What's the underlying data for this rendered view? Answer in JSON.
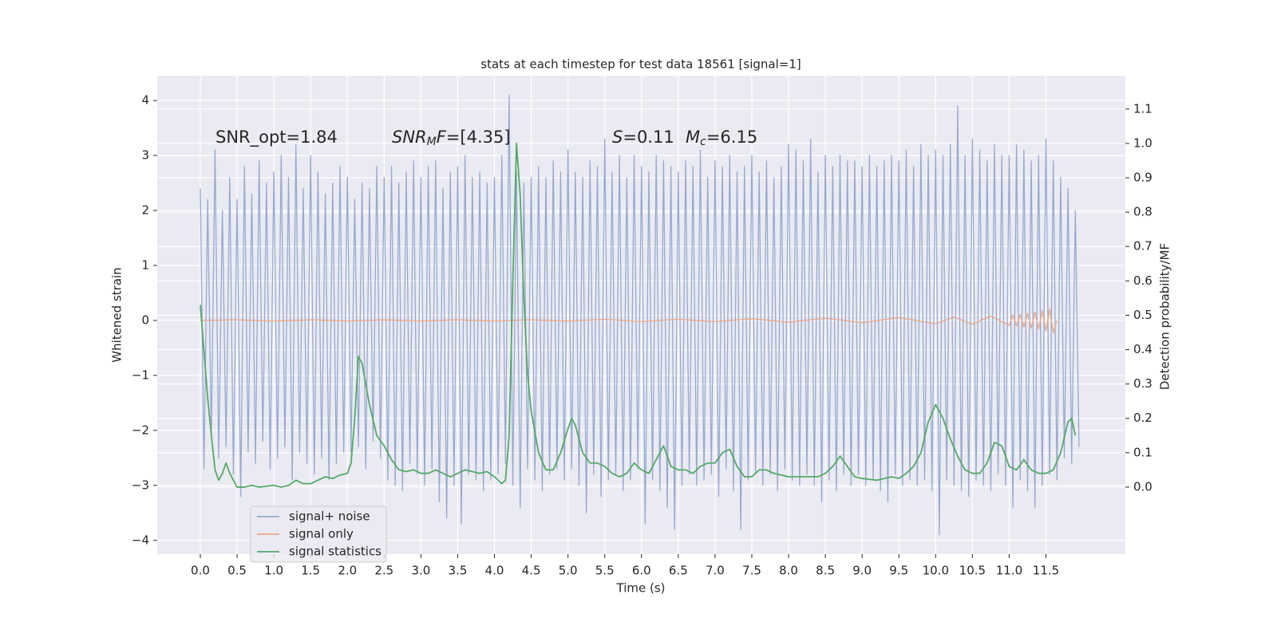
{
  "chart_data": {
    "type": "line",
    "title": "stats at each timestep for test data 18561 [signal=1]",
    "x_label": "Time (s)",
    "y_label": "Whitened strain",
    "y2_label": "Detection probability/MF",
    "grid": true,
    "legend": "lower left",
    "xlim": [
      -0.586,
      12.58
    ],
    "ylim": [
      -4.25,
      4.45
    ],
    "y2lim": [
      -0.195,
      1.197
    ],
    "xticks": [
      {
        "value": 0,
        "label": "0.0"
      },
      0.5,
      {
        "value": 1,
        "label": "1.0"
      },
      1.5,
      {
        "value": 2,
        "label": "2.0"
      },
      2.5,
      {
        "value": 3,
        "label": "3.0"
      },
      3.5,
      {
        "value": 4,
        "label": "4.0"
      },
      4.5,
      {
        "value": 5,
        "label": "5.0"
      },
      5.5,
      {
        "value": 6,
        "label": "6.0"
      },
      6.5,
      {
        "value": 7,
        "label": "7.0"
      },
      7.5,
      {
        "value": 8,
        "label": "8.0"
      },
      8.5,
      {
        "value": 9,
        "label": "9.0"
      },
      9.5,
      {
        "value": 10,
        "label": "10.0"
      },
      10.5,
      {
        "value": 11,
        "label": "11.0"
      },
      11.5
    ],
    "yticks": [
      {
        "value": -4,
        "label": "−4"
      },
      {
        "value": -3,
        "label": "−3"
      },
      {
        "value": -2,
        "label": "−2"
      },
      {
        "value": -1,
        "label": "−1"
      },
      0,
      1,
      2,
      3,
      4
    ],
    "y2ticks": [
      {
        "value": 0,
        "label": "0.0"
      },
      0.1,
      0.2,
      0.3,
      0.4,
      0.5,
      0.6,
      0.7,
      0.8,
      0.9,
      {
        "value": 1,
        "label": "1.0"
      },
      1.1
    ],
    "annotations": [
      [
        {
          "text": "SNR_opt=1.84"
        }
      ],
      [
        {
          "text": "SNR",
          "italic": true
        },
        {
          "text": "M",
          "italic": true,
          "sub": true
        },
        {
          "text": "F",
          "italic": true
        },
        {
          "text": "=[4.35]"
        }
      ],
      [
        {
          "text": "S",
          "italic": true
        },
        {
          "text": "=0.11"
        }
      ],
      [
        {
          "text": "M",
          "italic": true
        },
        {
          "text": "c",
          "italic": true,
          "sub": true
        },
        {
          "text": "=6.15"
        }
      ]
    ],
    "series": [
      {
        "name": "signal+ noise",
        "color": "#98a9cf",
        "x": [
          0,
          0.05,
          0.1,
          0.15,
          0.2,
          0.25,
          0.3,
          0.35,
          0.4,
          0.45,
          0.5,
          0.55,
          0.6,
          0.65,
          0.7,
          0.75,
          0.8,
          0.85,
          0.9,
          0.95,
          1,
          1.05,
          1.1,
          1.15,
          1.2,
          1.25,
          1.3,
          1.35,
          1.4,
          1.45,
          1.5,
          1.55,
          1.6,
          1.65,
          1.7,
          1.75,
          1.8,
          1.85,
          1.9,
          1.95,
          2,
          2.05,
          2.1,
          2.15,
          2.2,
          2.25,
          2.3,
          2.35,
          2.4,
          2.45,
          2.5,
          2.55,
          2.6,
          2.65,
          2.7,
          2.75,
          2.8,
          2.85,
          2.9,
          2.95,
          3,
          3.05,
          3.1,
          3.15,
          3.2,
          3.25,
          3.3,
          3.35,
          3.4,
          3.45,
          3.5,
          3.55,
          3.6,
          3.65,
          3.7,
          3.75,
          3.8,
          3.85,
          3.9,
          3.95,
          4,
          4.05,
          4.1,
          4.15,
          4.2,
          4.25,
          4.3,
          4.35,
          4.4,
          4.45,
          4.5,
          4.55,
          4.6,
          4.65,
          4.7,
          4.75,
          4.8,
          4.85,
          4.9,
          4.95,
          5,
          5.05,
          5.1,
          5.15,
          5.2,
          5.25,
          5.3,
          5.35,
          5.4,
          5.45,
          5.5,
          5.55,
          5.6,
          5.65,
          5.7,
          5.75,
          5.8,
          5.85,
          5.9,
          5.95,
          6,
          6.05,
          6.1,
          6.15,
          6.2,
          6.25,
          6.3,
          6.35,
          6.4,
          6.45,
          6.5,
          6.55,
          6.6,
          6.65,
          6.7,
          6.75,
          6.8,
          6.85,
          6.9,
          6.95,
          7,
          7.05,
          7.1,
          7.15,
          7.2,
          7.25,
          7.3,
          7.35,
          7.4,
          7.45,
          7.5,
          7.55,
          7.6,
          7.65,
          7.7,
          7.75,
          7.8,
          7.85,
          7.9,
          7.95,
          8,
          8.05,
          8.1,
          8.15,
          8.2,
          8.25,
          8.3,
          8.35,
          8.4,
          8.45,
          8.5,
          8.55,
          8.6,
          8.65,
          8.7,
          8.75,
          8.8,
          8.85,
          8.9,
          8.95,
          9,
          9.05,
          9.1,
          9.15,
          9.2,
          9.25,
          9.3,
          9.35,
          9.4,
          9.45,
          9.5,
          9.55,
          9.6,
          9.65,
          9.7,
          9.75,
          9.8,
          9.85,
          9.9,
          9.95,
          10,
          10.05,
          10.1,
          10.15,
          10.2,
          10.25,
          10.3,
          10.35,
          10.4,
          10.45,
          10.5,
          10.55,
          10.6,
          10.65,
          10.7,
          10.75,
          10.8,
          10.85,
          10.9,
          10.95,
          11,
          11.05,
          11.1,
          11.15,
          11.2,
          11.25,
          11.3,
          11.35,
          11.4,
          11.45,
          11.5,
          11.55,
          11.6,
          11.65,
          11.7,
          11.75,
          11.8,
          11.85,
          11.9,
          11.95
        ],
        "values": [
          2.4,
          -2.7,
          2.2,
          -2.1,
          3.1,
          -2.5,
          2.0,
          -2.3,
          2.6,
          -2.8,
          2.2,
          -3.2,
          2.8,
          -2.4,
          2.3,
          -2.6,
          2.9,
          -2.2,
          2.5,
          -2.7,
          2.7,
          -2.5,
          3.0,
          -2.3,
          2.6,
          -2.9,
          3.2,
          -2.4,
          2.4,
          -2.6,
          3.0,
          -2.8,
          2.7,
          -2.5,
          2.3,
          -2.9,
          2.5,
          -2.6,
          2.8,
          -2.4,
          2.6,
          -2.4,
          2.2,
          -2.3,
          2.5,
          -2.7,
          2.4,
          -2.2,
          2.8,
          -2.5,
          2.6,
          -2.9,
          2.8,
          -3.0,
          2.5,
          -3.1,
          2.7,
          -2.6,
          2.9,
          -2.8,
          2.6,
          -3.0,
          2.8,
          -2.7,
          2.9,
          -3.3,
          2.4,
          -3.6,
          2.7,
          -3.0,
          2.8,
          -3.7,
          3.0,
          -2.8,
          2.6,
          -2.9,
          2.7,
          -3.1,
          2.5,
          -2.9,
          2.6,
          -2.8,
          3.0,
          -2.6,
          4.1,
          -3.0,
          2.7,
          -3.4,
          2.5,
          -2.7,
          2.6,
          -2.9,
          2.8,
          -3.1,
          2.6,
          -2.8,
          2.9,
          -2.7,
          2.7,
          -2.9,
          3.1,
          -2.7,
          2.7,
          -3.0,
          2.6,
          -3.5,
          2.9,
          -2.8,
          2.8,
          -3.2,
          3.3,
          -2.9,
          2.7,
          -2.8,
          3.0,
          -3.1,
          2.6,
          -2.9,
          3.0,
          -2.7,
          2.8,
          -3.7,
          2.7,
          -2.9,
          3.0,
          -3.1,
          2.9,
          -3.4,
          2.8,
          -3.8,
          2.7,
          -3.0,
          2.9,
          -2.8,
          2.8,
          -3.0,
          3.1,
          -2.9,
          2.6,
          -2.8,
          2.9,
          -3.2,
          2.8,
          -2.7,
          3.0,
          -3.1,
          2.7,
          -3.8,
          2.8,
          -2.9,
          3.0,
          -2.8,
          2.7,
          -3.0,
          2.9,
          -2.8,
          2.6,
          -3.1,
          2.8,
          -2.7,
          3.2,
          -2.9,
          3.1,
          -3.0,
          2.9,
          -2.8,
          3.3,
          -3.0,
          2.7,
          -3.3,
          3.0,
          -2.9,
          2.8,
          -3.1,
          3.0,
          -2.8,
          2.9,
          -3.0,
          2.9,
          -2.8,
          2.8,
          -3.0,
          3.0,
          -2.9,
          2.8,
          -3.1,
          2.9,
          -3.3,
          3.0,
          -2.8,
          2.9,
          -3.0,
          3.1,
          -2.9,
          2.8,
          -3.0,
          3.2,
          -2.9,
          3.0,
          -3.1,
          3.1,
          -3.9,
          3.0,
          -2.9,
          3.2,
          -3.0,
          3.9,
          -3.1,
          3.0,
          -3.2,
          3.3,
          -2.9,
          3.1,
          -3.0,
          2.9,
          -3.1,
          3.2,
          -2.8,
          3.0,
          -3.0,
          3.0,
          -3.4,
          3.2,
          -2.9,
          3.1,
          -3.1,
          2.9,
          -3.4,
          3.0,
          -3.0,
          3.3,
          -2.8,
          2.9,
          -2.9,
          2.6,
          -2.5,
          2.4,
          -2.6,
          2.0,
          -2.3
        ]
      },
      {
        "name": "signal only",
        "color": "#e8a787",
        "x": [
          0,
          0.5,
          1,
          1.5,
          2,
          2.5,
          3,
          3.5,
          4,
          4.5,
          5,
          5.5,
          6,
          6.5,
          7,
          7.5,
          8,
          8.5,
          9,
          9.5,
          10,
          10.25,
          10.5,
          10.75,
          11,
          11.05,
          11.1,
          11.15,
          11.2,
          11.25,
          11.3,
          11.35,
          11.4,
          11.45,
          11.5,
          11.55,
          11.6,
          11.65
        ],
        "values": [
          0,
          0.01,
          -0.01,
          0.01,
          -0.01,
          0.01,
          -0.01,
          0.01,
          -0.01,
          0.01,
          -0.01,
          0.02,
          -0.02,
          0.02,
          -0.02,
          0.03,
          -0.03,
          0.04,
          -0.04,
          0.05,
          -0.06,
          0.06,
          -0.07,
          0.08,
          -0.09,
          0.1,
          -0.1,
          0.11,
          -0.12,
          0.13,
          -0.14,
          0.15,
          -0.16,
          0.18,
          -0.19,
          0.21,
          -0.23,
          0.0
        ]
      },
      {
        "name": "signal statistics",
        "color": "#55a868",
        "axis": "y2",
        "x": [
          0,
          0.1,
          0.15,
          0.2,
          0.25,
          0.3,
          0.35,
          0.4,
          0.5,
          0.6,
          0.7,
          0.8,
          1.0,
          1.1,
          1.2,
          1.3,
          1.4,
          1.5,
          1.6,
          1.7,
          1.8,
          1.9,
          2.0,
          2.05,
          2.1,
          2.15,
          2.2,
          2.3,
          2.4,
          2.5,
          2.6,
          2.7,
          2.8,
          2.9,
          3.0,
          3.1,
          3.2,
          3.3,
          3.4,
          3.5,
          3.6,
          3.7,
          3.8,
          3.9,
          4.0,
          4.1,
          4.15,
          4.2,
          4.25,
          4.3,
          4.35,
          4.4,
          4.45,
          4.5,
          4.6,
          4.7,
          4.8,
          4.9,
          5.0,
          5.05,
          5.1,
          5.2,
          5.3,
          5.4,
          5.5,
          5.6,
          5.7,
          5.8,
          5.9,
          6.0,
          6.1,
          6.2,
          6.3,
          6.4,
          6.5,
          6.6,
          6.7,
          6.8,
          6.9,
          7.0,
          7.1,
          7.2,
          7.3,
          7.4,
          7.5,
          7.6,
          7.7,
          7.8,
          7.9,
          8.0,
          8.2,
          8.4,
          8.5,
          8.6,
          8.7,
          8.8,
          8.9,
          9.0,
          9.2,
          9.4,
          9.5,
          9.6,
          9.7,
          9.8,
          9.9,
          10.0,
          10.1,
          10.2,
          10.3,
          10.4,
          10.5,
          10.6,
          10.7,
          10.8,
          10.9,
          11.0,
          11.1,
          11.2,
          11.3,
          11.4,
          11.5,
          11.6,
          11.7,
          11.8,
          11.85,
          11.9
        ],
        "values": [
          0.53,
          0.26,
          0.15,
          0.05,
          0.02,
          0.04,
          0.07,
          0.04,
          0.0,
          0.0,
          0.005,
          0.0,
          0.005,
          0.0,
          0.005,
          0.02,
          0.01,
          0.01,
          0.02,
          0.03,
          0.025,
          0.035,
          0.04,
          0.07,
          0.2,
          0.38,
          0.36,
          0.24,
          0.15,
          0.12,
          0.08,
          0.05,
          0.045,
          0.05,
          0.04,
          0.04,
          0.05,
          0.04,
          0.03,
          0.04,
          0.05,
          0.045,
          0.04,
          0.045,
          0.03,
          0.01,
          0.02,
          0.15,
          0.6,
          1.0,
          0.85,
          0.55,
          0.33,
          0.22,
          0.1,
          0.05,
          0.05,
          0.1,
          0.17,
          0.2,
          0.18,
          0.1,
          0.07,
          0.07,
          0.06,
          0.04,
          0.03,
          0.04,
          0.07,
          0.05,
          0.04,
          0.08,
          0.12,
          0.06,
          0.05,
          0.05,
          0.04,
          0.06,
          0.07,
          0.07,
          0.1,
          0.11,
          0.06,
          0.03,
          0.03,
          0.05,
          0.05,
          0.04,
          0.035,
          0.03,
          0.03,
          0.03,
          0.04,
          0.06,
          0.09,
          0.06,
          0.03,
          0.025,
          0.02,
          0.03,
          0.025,
          0.04,
          0.06,
          0.1,
          0.19,
          0.24,
          0.2,
          0.14,
          0.09,
          0.05,
          0.04,
          0.04,
          0.07,
          0.13,
          0.12,
          0.06,
          0.05,
          0.08,
          0.05,
          0.04,
          0.04,
          0.05,
          0.1,
          0.19,
          0.2,
          0.15
        ]
      }
    ]
  }
}
